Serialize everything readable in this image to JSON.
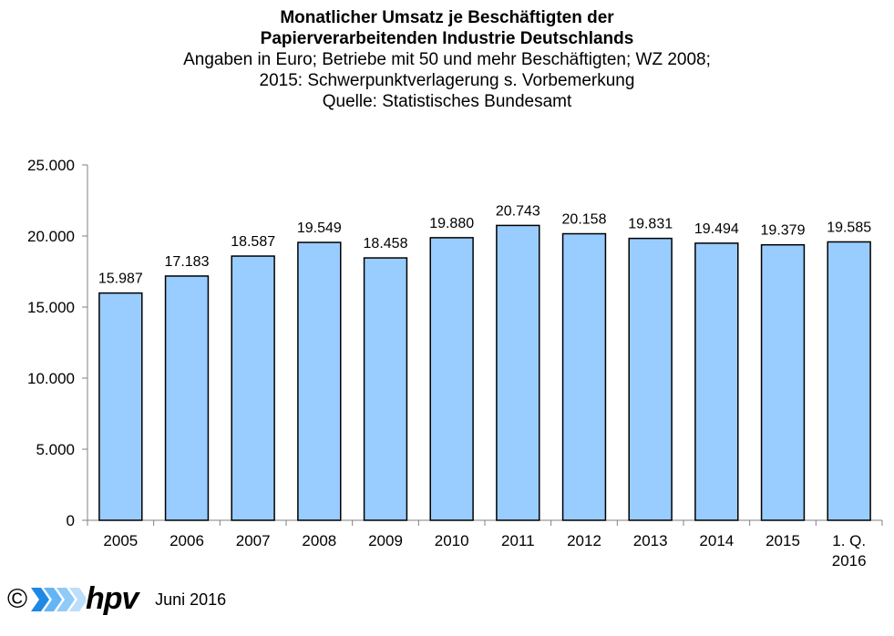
{
  "chart_data": {
    "type": "bar",
    "title_lines": [
      "Monatlicher Umsatz je Beschäftigten der",
      "Papierverarbeitenden Industrie Deutschlands"
    ],
    "subtitle_lines": [
      "Angaben in Euro; Betriebe mit 50 und mehr Beschäftigten; WZ 2008;",
      "2015: Schwerpunktverlagerung s. Vorbemerkung",
      "Quelle: Statistisches Bundesamt"
    ],
    "categories": [
      "2005",
      "2006",
      "2007",
      "2008",
      "2009",
      "2010",
      "2011",
      "2012",
      "2013",
      "2014",
      "2015",
      "1. Q. 2016"
    ],
    "values": [
      15987,
      17183,
      18587,
      19549,
      18458,
      19880,
      20743,
      20158,
      19831,
      19494,
      19379,
      19585
    ],
    "data_labels": [
      "15.987",
      "17.183",
      "18.587",
      "19.549",
      "18.458",
      "19.880",
      "20.743",
      "20.158",
      "19.831",
      "19.494",
      "19.379",
      "19.585"
    ],
    "y_ticks": [
      0,
      5000,
      10000,
      15000,
      20000,
      25000
    ],
    "y_tick_labels": [
      "0",
      "5.000",
      "10.000",
      "15.000",
      "20.000",
      "25.000"
    ],
    "ylim": [
      0,
      25000
    ],
    "xlabel": "",
    "ylabel": "",
    "grid": false,
    "bar_color": "#99ccff",
    "bar_border": "#000000"
  },
  "footer": {
    "copyright": "©",
    "logo_text": "hpv",
    "date": "Juni 2016",
    "logo_colors": [
      "#1e88e5",
      "#64b5f6",
      "#90caf9",
      "#bbdefb"
    ]
  }
}
